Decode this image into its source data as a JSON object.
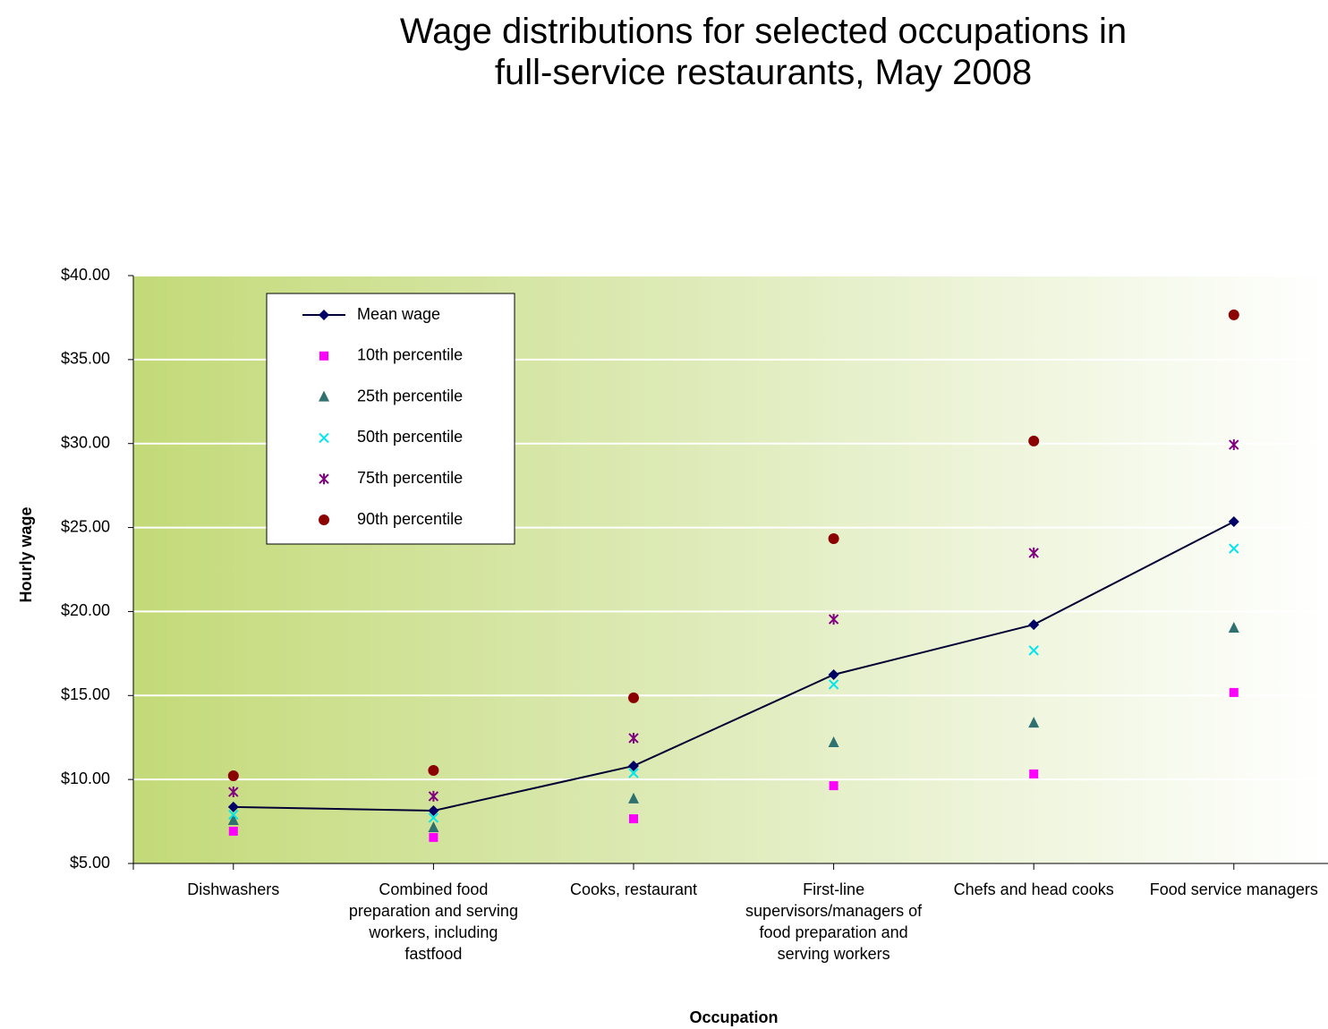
{
  "chart_data": {
    "type": "line",
    "title": "Wage distributions for selected occupations in full-service restaurants, May 2008",
    "x_label": "Occupation",
    "y_label": "Hourly wage",
    "categories": [
      "Dishwashers",
      "Combined food preparation and serving workers, including fastfood",
      "Cooks, restaurant",
      "First-line supervisors/managers of food preparation and serving workers",
      "Chefs and head cooks",
      "Food service managers"
    ],
    "series": [
      {
        "name": "Mean wage",
        "color": "#000066",
        "marker": "diamond",
        "line": true,
        "values": [
          8.36,
          8.14,
          10.81,
          16.24,
          19.22,
          25.35
        ]
      },
      {
        "name": "10th percentile",
        "color": "#ff00ff",
        "marker": "square",
        "line": false,
        "values": [
          6.92,
          6.55,
          7.66,
          9.63,
          10.33,
          15.18
        ]
      },
      {
        "name": "25th percentile",
        "color": "#2f7070",
        "marker": "triangle",
        "line": false,
        "values": [
          7.56,
          7.13,
          8.84,
          12.19,
          13.36,
          19.01
        ]
      },
      {
        "name": "50th percentile",
        "color": "#00e5ee",
        "marker": "x",
        "line": false,
        "values": [
          7.9,
          7.72,
          10.38,
          15.66,
          17.68,
          23.75
        ]
      },
      {
        "name": "75th percentile",
        "color": "#800080",
        "marker": "star",
        "line": false,
        "values": [
          9.26,
          9.0,
          12.46,
          19.54,
          23.49,
          29.93
        ]
      },
      {
        "name": "90th percentile",
        "color": "#8b0000",
        "marker": "circle",
        "line": false,
        "values": [
          10.22,
          10.54,
          14.86,
          24.34,
          30.15,
          37.66
        ]
      }
    ],
    "ylim": [
      5,
      40
    ],
    "yticks": [
      {
        "value": 5,
        "label": "$5.00"
      },
      {
        "value": 10,
        "label": "$10.00"
      },
      {
        "value": 15,
        "label": "$15.00"
      },
      {
        "value": 20,
        "label": "$20.00"
      },
      {
        "value": 25,
        "label": "$25.00"
      },
      {
        "value": 30,
        "label": "$30.00"
      },
      {
        "value": 35,
        "label": "$35.00"
      },
      {
        "value": 40,
        "label": "$40.00"
      }
    ],
    "grid": true,
    "legend": "upper left"
  }
}
